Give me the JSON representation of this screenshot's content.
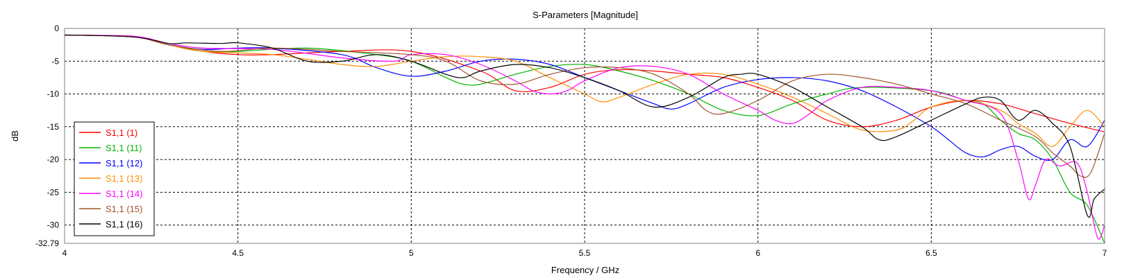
{
  "chart_data": {
    "type": "line",
    "title": "S-Parameters [Magnitude]",
    "xlabel": "Frequency / GHz",
    "ylabel": "dB",
    "xlim": [
      4,
      7
    ],
    "ylim": [
      -32.79,
      0
    ],
    "x_ticks": [
      "4",
      "4.5",
      "5",
      "5.5",
      "6",
      "6.5",
      "7"
    ],
    "y_ticks": [
      "0",
      "-5",
      "-10",
      "-15",
      "-20",
      "-25",
      "-30",
      "-32.79"
    ],
    "grid": true,
    "legend_position": "bottom-left",
    "series": [
      {
        "name": "S1,1 (1)",
        "color": "#ff0000",
        "points": [
          [
            4,
            -1
          ],
          [
            4.2,
            -1.3
          ],
          [
            4.3,
            -2.5
          ],
          [
            4.4,
            -3.5
          ],
          [
            4.5,
            -4
          ],
          [
            4.6,
            -4
          ],
          [
            4.8,
            -3.5
          ],
          [
            5,
            -3.5
          ],
          [
            5.2,
            -6.5
          ],
          [
            5.3,
            -9.5
          ],
          [
            5.4,
            -9
          ],
          [
            5.5,
            -7
          ],
          [
            5.6,
            -6.3
          ],
          [
            5.7,
            -6.5
          ],
          [
            5.8,
            -7
          ],
          [
            5.9,
            -7.5
          ],
          [
            6.0,
            -9
          ],
          [
            6.1,
            -11
          ],
          [
            6.2,
            -14
          ],
          [
            6.3,
            -15
          ],
          [
            6.4,
            -14
          ],
          [
            6.5,
            -12
          ],
          [
            6.6,
            -11
          ],
          [
            6.7,
            -11.5
          ],
          [
            6.8,
            -13
          ],
          [
            6.9,
            -14.5
          ],
          [
            7.0,
            -15.8
          ]
        ]
      },
      {
        "name": "S1,1 (11)",
        "color": "#00b400",
        "points": [
          [
            4,
            -1
          ],
          [
            4.2,
            -1.3
          ],
          [
            4.3,
            -2.5
          ],
          [
            4.4,
            -3.5
          ],
          [
            4.5,
            -3.5
          ],
          [
            4.7,
            -3
          ],
          [
            4.9,
            -4
          ],
          [
            5.0,
            -5
          ],
          [
            5.1,
            -7.5
          ],
          [
            5.15,
            -8.5
          ],
          [
            5.2,
            -8.5
          ],
          [
            5.3,
            -7
          ],
          [
            5.4,
            -5.8
          ],
          [
            5.5,
            -5.5
          ],
          [
            5.6,
            -6.5
          ],
          [
            5.7,
            -8
          ],
          [
            5.8,
            -10
          ],
          [
            5.9,
            -12.5
          ],
          [
            6.0,
            -13.3
          ],
          [
            6.1,
            -11.5
          ],
          [
            6.2,
            -10
          ],
          [
            6.3,
            -9
          ],
          [
            6.5,
            -9.5
          ],
          [
            6.6,
            -11
          ],
          [
            6.65,
            -11.5
          ],
          [
            6.7,
            -14
          ],
          [
            6.75,
            -16
          ],
          [
            6.8,
            -17
          ],
          [
            6.85,
            -20
          ],
          [
            6.9,
            -25
          ],
          [
            6.95,
            -27
          ],
          [
            7.0,
            -32.79
          ]
        ]
      },
      {
        "name": "S1,1 (12)",
        "color": "#0000ff",
        "points": [
          [
            4,
            -1
          ],
          [
            4.2,
            -1.3
          ],
          [
            4.3,
            -2.5
          ],
          [
            4.4,
            -3.2
          ],
          [
            4.5,
            -3
          ],
          [
            4.6,
            -3
          ],
          [
            4.8,
            -4
          ],
          [
            4.9,
            -6
          ],
          [
            5.0,
            -7.3
          ],
          [
            5.1,
            -6.5
          ],
          [
            5.2,
            -5
          ],
          [
            5.3,
            -4.7
          ],
          [
            5.4,
            -5.5
          ],
          [
            5.5,
            -7.5
          ],
          [
            5.6,
            -9.5
          ],
          [
            5.7,
            -11.5
          ],
          [
            5.75,
            -12.3
          ],
          [
            5.8,
            -11.5
          ],
          [
            5.9,
            -9
          ],
          [
            6.0,
            -7.8
          ],
          [
            6.1,
            -7.5
          ],
          [
            6.2,
            -8
          ],
          [
            6.3,
            -9.5
          ],
          [
            6.4,
            -12
          ],
          [
            6.5,
            -15
          ],
          [
            6.55,
            -17
          ],
          [
            6.6,
            -19
          ],
          [
            6.65,
            -19.6
          ],
          [
            6.7,
            -18.5
          ],
          [
            6.75,
            -18
          ],
          [
            6.8,
            -19.5
          ],
          [
            6.85,
            -20
          ],
          [
            6.9,
            -17
          ],
          [
            6.95,
            -18
          ],
          [
            7.0,
            -14
          ]
        ]
      },
      {
        "name": "S1,1 (13)",
        "color": "#ff8c00",
        "points": [
          [
            4,
            -1
          ],
          [
            4.2,
            -1.3
          ],
          [
            4.3,
            -2.5
          ],
          [
            4.4,
            -3.5
          ],
          [
            4.6,
            -4
          ],
          [
            4.8,
            -5.5
          ],
          [
            4.9,
            -5.8
          ],
          [
            5.0,
            -5
          ],
          [
            5.1,
            -4.3
          ],
          [
            5.2,
            -4.3
          ],
          [
            5.3,
            -5
          ],
          [
            5.4,
            -7.5
          ],
          [
            5.5,
            -10
          ],
          [
            5.55,
            -11.2
          ],
          [
            5.6,
            -10.5
          ],
          [
            5.7,
            -8.5
          ],
          [
            5.8,
            -7
          ],
          [
            5.9,
            -7
          ],
          [
            6.0,
            -8.5
          ],
          [
            6.1,
            -10.5
          ],
          [
            6.2,
            -13
          ],
          [
            6.3,
            -15.5
          ],
          [
            6.4,
            -15.5
          ],
          [
            6.45,
            -14
          ],
          [
            6.5,
            -12
          ],
          [
            6.6,
            -11
          ],
          [
            6.7,
            -12.5
          ],
          [
            6.75,
            -14.5
          ],
          [
            6.8,
            -16
          ],
          [
            6.85,
            -18
          ],
          [
            6.9,
            -15
          ],
          [
            6.95,
            -12.5
          ],
          [
            7.0,
            -15
          ]
        ]
      },
      {
        "name": "S1,1 (14)",
        "color": "#ff00ff",
        "points": [
          [
            4,
            -1
          ],
          [
            4.2,
            -1.2
          ],
          [
            4.3,
            -2.3
          ],
          [
            4.4,
            -3
          ],
          [
            4.6,
            -3.2
          ],
          [
            4.8,
            -4.5
          ],
          [
            4.95,
            -5
          ],
          [
            5.0,
            -4
          ],
          [
            5.1,
            -4
          ],
          [
            5.2,
            -5.5
          ],
          [
            5.3,
            -8
          ],
          [
            5.35,
            -9.5
          ],
          [
            5.4,
            -10
          ],
          [
            5.45,
            -9.5
          ],
          [
            5.5,
            -8
          ],
          [
            5.6,
            -6
          ],
          [
            5.7,
            -5.8
          ],
          [
            5.8,
            -7
          ],
          [
            5.9,
            -10
          ],
          [
            6.0,
            -12.5
          ],
          [
            6.05,
            -14
          ],
          [
            6.1,
            -14.5
          ],
          [
            6.15,
            -13
          ],
          [
            6.2,
            -11
          ],
          [
            6.3,
            -9
          ],
          [
            6.4,
            -9
          ],
          [
            6.5,
            -9.5
          ],
          [
            6.6,
            -11
          ],
          [
            6.7,
            -13
          ],
          [
            6.75,
            -20
          ],
          [
            6.78,
            -26
          ],
          [
            6.8,
            -24
          ],
          [
            6.83,
            -20
          ],
          [
            6.87,
            -21
          ],
          [
            6.92,
            -20.5
          ],
          [
            6.95,
            -25
          ],
          [
            6.98,
            -32
          ],
          [
            7.0,
            -30
          ]
        ]
      },
      {
        "name": "S1,1 (15)",
        "color": "#a0522d",
        "points": [
          [
            4,
            -1
          ],
          [
            4.2,
            -1.3
          ],
          [
            4.3,
            -2.5
          ],
          [
            4.45,
            -3.5
          ],
          [
            4.6,
            -3
          ],
          [
            4.8,
            -3.5
          ],
          [
            5.0,
            -4
          ],
          [
            5.1,
            -5
          ],
          [
            5.2,
            -8
          ],
          [
            5.3,
            -8.5
          ],
          [
            5.4,
            -7
          ],
          [
            5.5,
            -6
          ],
          [
            5.6,
            -6
          ],
          [
            5.7,
            -7
          ],
          [
            5.8,
            -10
          ],
          [
            5.85,
            -12.5
          ],
          [
            5.9,
            -13
          ],
          [
            6.0,
            -11
          ],
          [
            6.1,
            -8
          ],
          [
            6.2,
            -7
          ],
          [
            6.3,
            -7.5
          ],
          [
            6.4,
            -8.5
          ],
          [
            6.5,
            -10
          ],
          [
            6.6,
            -11.5
          ],
          [
            6.7,
            -14
          ],
          [
            6.8,
            -16.5
          ],
          [
            6.85,
            -19
          ],
          [
            6.9,
            -21
          ],
          [
            6.93,
            -22.5
          ],
          [
            6.96,
            -22
          ],
          [
            7.0,
            -16
          ]
        ]
      },
      {
        "name": "S1,1 (16)",
        "color": "#000000",
        "points": [
          [
            4,
            -1
          ],
          [
            4.2,
            -1.3
          ],
          [
            4.3,
            -2.3
          ],
          [
            4.35,
            -2.2
          ],
          [
            4.45,
            -2.3
          ],
          [
            4.5,
            -2.2
          ],
          [
            4.6,
            -3
          ],
          [
            4.7,
            -5
          ],
          [
            4.8,
            -5
          ],
          [
            4.9,
            -4
          ],
          [
            5.0,
            -5
          ],
          [
            5.1,
            -7
          ],
          [
            5.15,
            -7.5
          ],
          [
            5.2,
            -6.5
          ],
          [
            5.3,
            -5.5
          ],
          [
            5.4,
            -6
          ],
          [
            5.5,
            -7.5
          ],
          [
            5.6,
            -9.5
          ],
          [
            5.7,
            -12
          ],
          [
            5.8,
            -10.5
          ],
          [
            5.9,
            -7.5
          ],
          [
            5.95,
            -7
          ],
          [
            6.0,
            -7
          ],
          [
            6.1,
            -9
          ],
          [
            6.2,
            -12
          ],
          [
            6.3,
            -15
          ],
          [
            6.35,
            -17
          ],
          [
            6.4,
            -16.5
          ],
          [
            6.5,
            -14
          ],
          [
            6.6,
            -11.5
          ],
          [
            6.65,
            -10.5
          ],
          [
            6.7,
            -11
          ],
          [
            6.75,
            -14
          ],
          [
            6.8,
            -12.5
          ],
          [
            6.85,
            -14.5
          ],
          [
            6.9,
            -18
          ],
          [
            6.95,
            -28.5
          ],
          [
            6.97,
            -26
          ],
          [
            7.0,
            -24.5
          ]
        ]
      }
    ]
  }
}
